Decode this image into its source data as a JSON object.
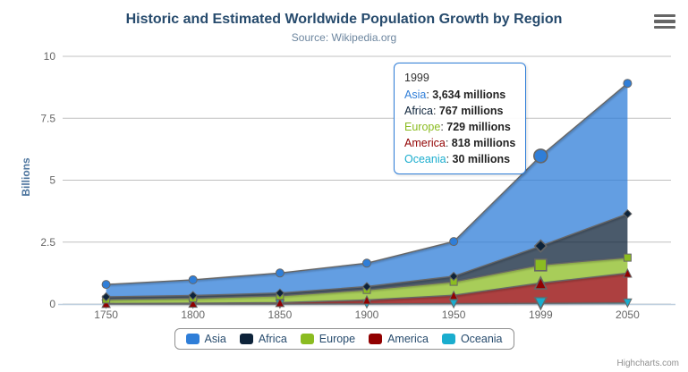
{
  "chart": {
    "title": "Historic and Estimated Worldwide Population Growth by Region",
    "subtitle": "Source: Wikipedia.org",
    "credits": "Highcharts.com"
  },
  "chart_data": {
    "type": "area",
    "stacking": "normal",
    "title": "Historic and Estimated Worldwide Population Growth by Region",
    "subtitle": "Source: Wikipedia.org",
    "categories": [
      "1750",
      "1800",
      "1850",
      "1900",
      "1950",
      "1999",
      "2050"
    ],
    "xlabel": "",
    "ylabel": "Billions",
    "ylim": [
      0,
      10
    ],
    "ytick_labels": [
      "0",
      "2.5",
      "5",
      "7.5",
      "10"
    ],
    "yticks": [
      0,
      2.5,
      5,
      7.5,
      10
    ],
    "grid": true,
    "legend_position": "bottom",
    "values_unit": "millions",
    "series": [
      {
        "name": "Asia",
        "color": "#2f7ed8",
        "marker": "circle",
        "values": [
          502,
          635,
          809,
          947,
          1402,
          3634,
          5268
        ]
      },
      {
        "name": "Africa",
        "color": "#0d233a",
        "marker": "diamond",
        "values": [
          106,
          107,
          111,
          133,
          221,
          767,
          1766
        ]
      },
      {
        "name": "Europe",
        "color": "#8bbc21",
        "marker": "square",
        "values": [
          163,
          203,
          276,
          408,
          547,
          729,
          628
        ]
      },
      {
        "name": "America",
        "color": "#910000",
        "marker": "triangle",
        "values": [
          18,
          31,
          54,
          156,
          339,
          818,
          1201
        ]
      },
      {
        "name": "Oceania",
        "color": "#1aadce",
        "marker": "triangle-down",
        "values": [
          2,
          2,
          2,
          6,
          13,
          30,
          46
        ]
      }
    ],
    "stack_order_bottom_to_top": [
      "Oceania",
      "America",
      "Europe",
      "Africa",
      "Asia"
    ],
    "hover_category_index": 5
  },
  "tooltip": {
    "header": "1999",
    "rows": [
      {
        "name": "Asia",
        "value": "3,634 millions"
      },
      {
        "name": "Africa",
        "value": "767 millions"
      },
      {
        "name": "Europe",
        "value": "729 millions"
      },
      {
        "name": "America",
        "value": "818 millions"
      },
      {
        "name": "Oceania",
        "value": "30 millions"
      }
    ]
  },
  "colors": {
    "title": "#274b6d",
    "subtitle": "#6d869f",
    "axis_labels": "#666666",
    "yaxis_title": "#4d759e",
    "legend_text": "#274b6d",
    "gridline": "#c0c0c0",
    "xaxis_line": "#c0d0e0",
    "series_outline": "#666666",
    "tooltip_border": "#2f7ed8",
    "credits": "#909090",
    "menu_icon": "#666666",
    "fill_opacity": 0.75
  }
}
